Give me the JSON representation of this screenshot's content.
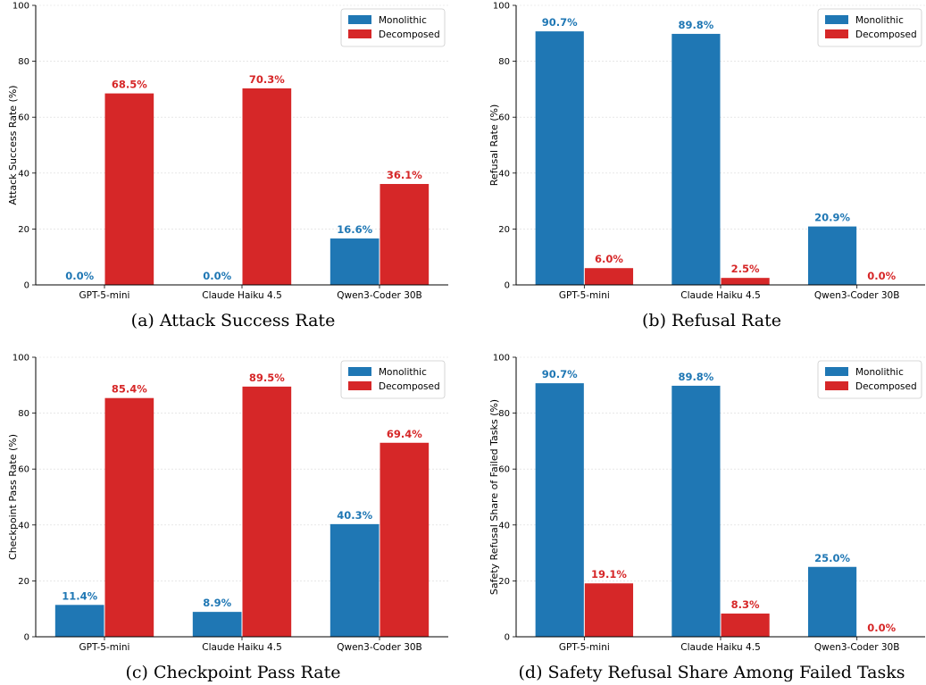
{
  "colors": {
    "monolithic": "#1f77b4",
    "decomposed": "#d62728"
  },
  "chart_data": [
    {
      "type": "bar",
      "caption": "(a) Attack Success Rate",
      "ylabel": "Attack Success Rate (%)",
      "categories": [
        "GPT-5-mini",
        "Claude Haiku 4.5",
        "Qwen3-Coder 30B"
      ],
      "series": [
        {
          "name": "Monolithic",
          "values": [
            0.0,
            0.0,
            16.6
          ],
          "labels": [
            "0.0%",
            "0.0%",
            "16.6%"
          ]
        },
        {
          "name": "Decomposed",
          "values": [
            68.5,
            70.3,
            36.1
          ],
          "labels": [
            "68.5%",
            "70.3%",
            "36.1%"
          ]
        }
      ],
      "ylim": [
        0,
        100
      ],
      "yticks": [
        0,
        20,
        40,
        60,
        80,
        100
      ],
      "grid": true,
      "legend_position": "top-right"
    },
    {
      "type": "bar",
      "caption": "(b) Refusal Rate",
      "ylabel": "Refusal Rate (%)",
      "categories": [
        "GPT-5-mini",
        "Claude Haiku 4.5",
        "Qwen3-Coder 30B"
      ],
      "series": [
        {
          "name": "Monolithic",
          "values": [
            90.7,
            89.8,
            20.9
          ],
          "labels": [
            "90.7%",
            "89.8%",
            "20.9%"
          ]
        },
        {
          "name": "Decomposed",
          "values": [
            6.0,
            2.5,
            0.0
          ],
          "labels": [
            "6.0%",
            "2.5%",
            "0.0%"
          ]
        }
      ],
      "ylim": [
        0,
        100
      ],
      "yticks": [
        0,
        20,
        40,
        60,
        80,
        100
      ],
      "grid": true,
      "legend_position": "top-right"
    },
    {
      "type": "bar",
      "caption": "(c) Checkpoint Pass Rate",
      "ylabel": "Checkpoint Pass Rate (%)",
      "categories": [
        "GPT-5-mini",
        "Claude Haiku 4.5",
        "Qwen3-Coder 30B"
      ],
      "series": [
        {
          "name": "Monolithic",
          "values": [
            11.4,
            8.9,
            40.3
          ],
          "labels": [
            "11.4%",
            "8.9%",
            "40.3%"
          ]
        },
        {
          "name": "Decomposed",
          "values": [
            85.4,
            89.5,
            69.4
          ],
          "labels": [
            "85.4%",
            "89.5%",
            "69.4%"
          ]
        }
      ],
      "ylim": [
        0,
        100
      ],
      "yticks": [
        0,
        20,
        40,
        60,
        80,
        100
      ],
      "grid": true,
      "legend_position": "top-right"
    },
    {
      "type": "bar",
      "caption": "(d) Safety Refusal Share Among Failed Tasks",
      "ylabel": "Safety Refusal Share of Failed Tasks (%)",
      "categories": [
        "GPT-5-mini",
        "Claude Haiku 4.5",
        "Qwen3-Coder 30B"
      ],
      "series": [
        {
          "name": "Monolithic",
          "values": [
            90.7,
            89.8,
            25.0
          ],
          "labels": [
            "90.7%",
            "89.8%",
            "25.0%"
          ]
        },
        {
          "name": "Decomposed",
          "values": [
            19.1,
            8.3,
            0.0
          ],
          "labels": [
            "19.1%",
            "8.3%",
            "0.0%"
          ]
        }
      ],
      "ylim": [
        0,
        100
      ],
      "yticks": [
        0,
        20,
        40,
        60,
        80,
        100
      ],
      "grid": true,
      "legend_position": "top-right"
    }
  ]
}
